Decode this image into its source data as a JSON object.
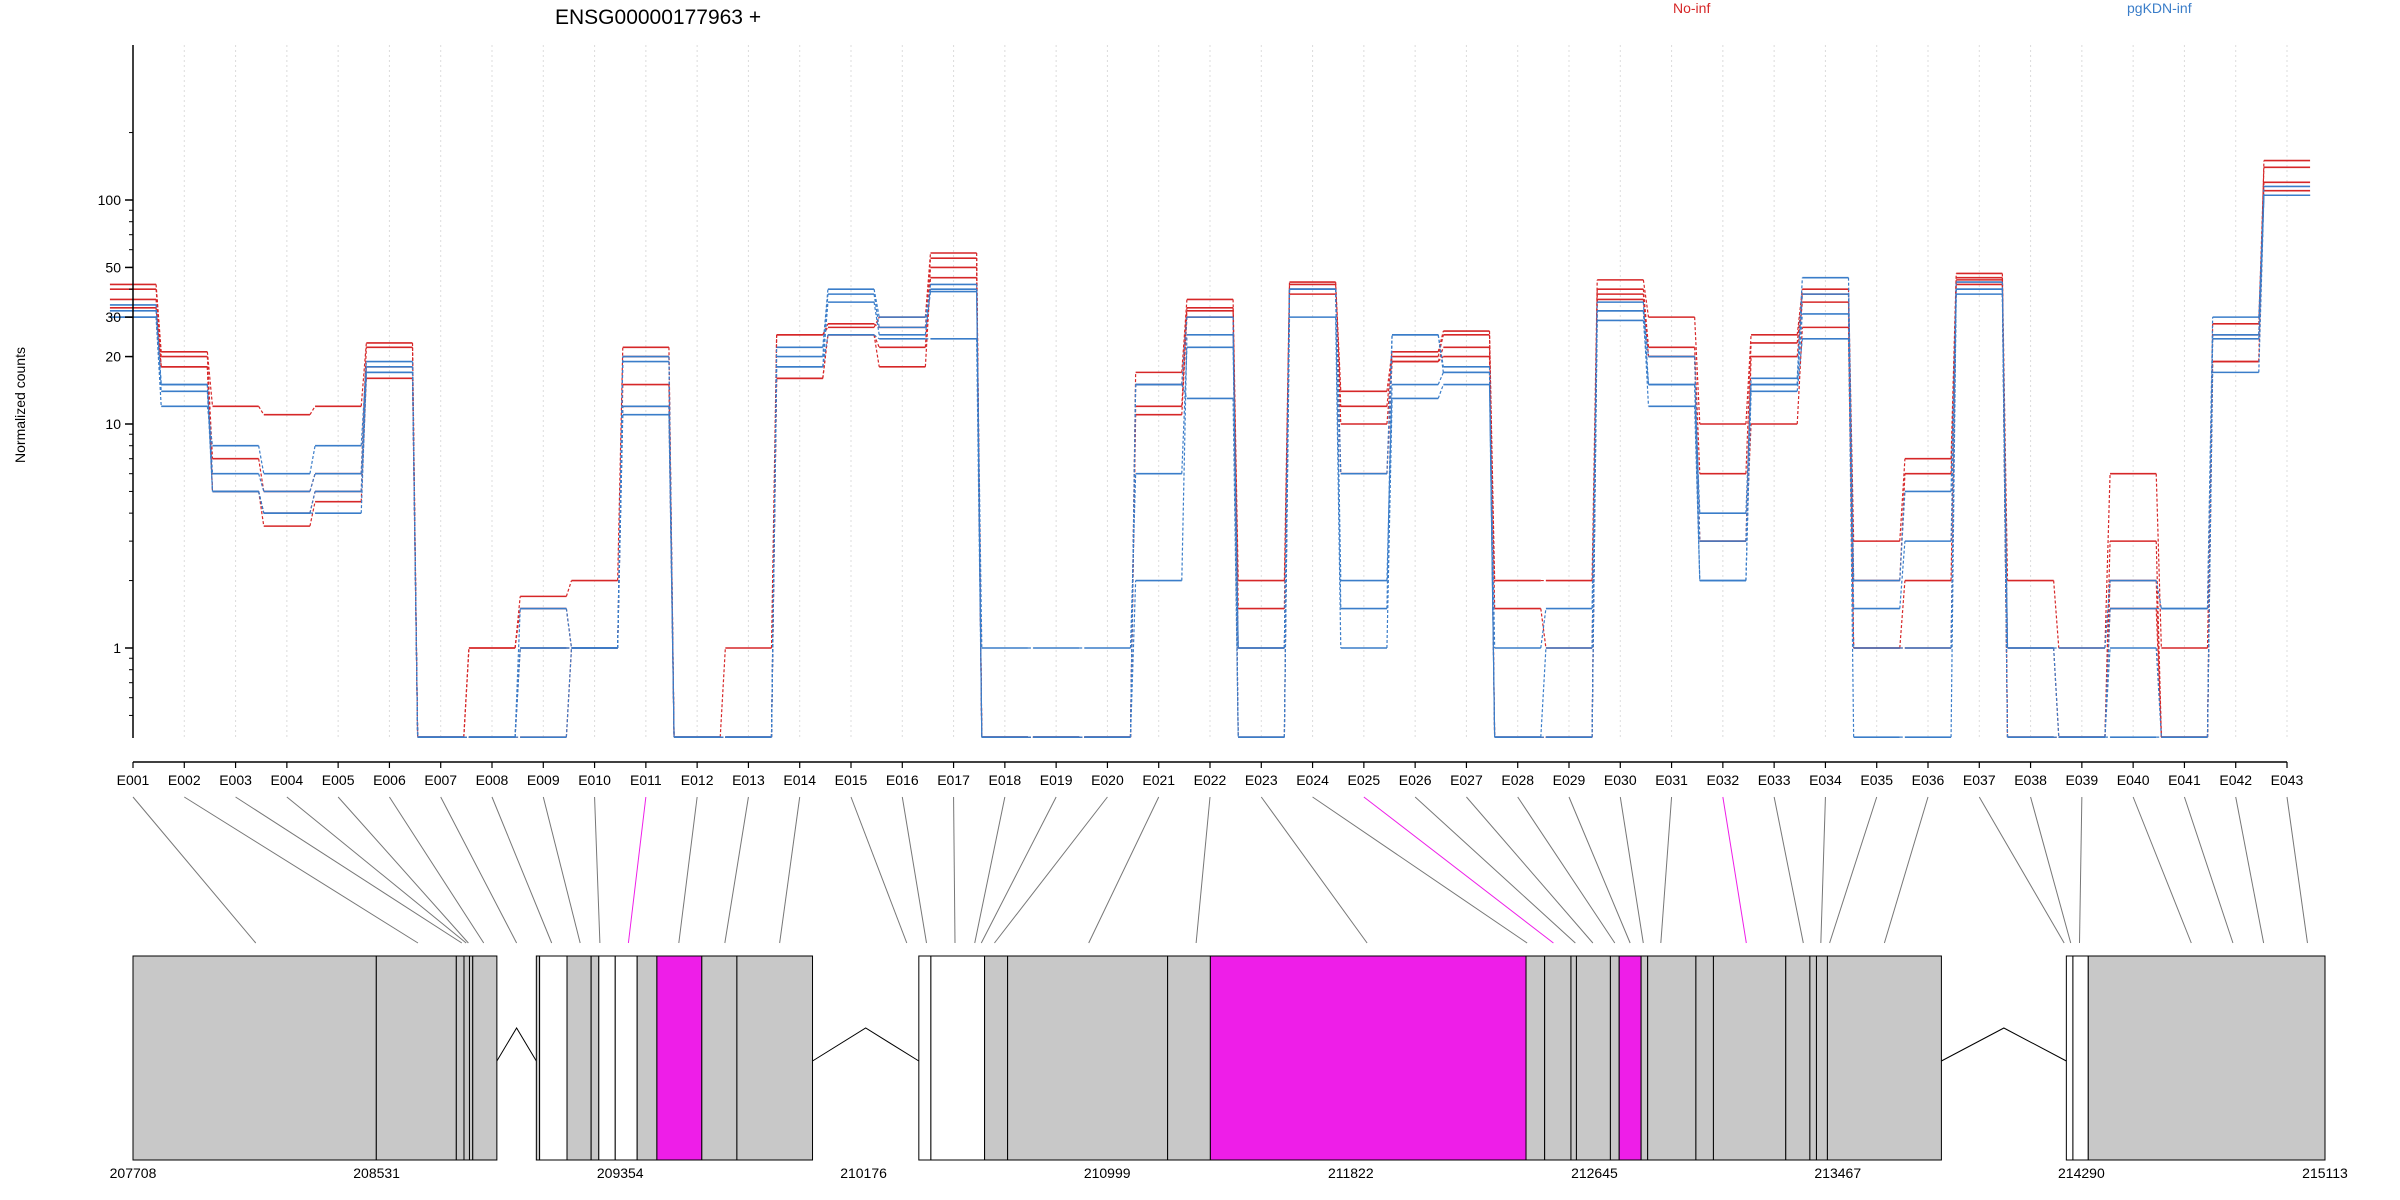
{
  "chart_data": {
    "type": "line",
    "title": "ENSG00000177963 +",
    "ylabel": "Normalized counts",
    "y_scale": "log",
    "ylim": [
      0.4,
      200
    ],
    "y_ticks": [
      1,
      10,
      20,
      30,
      50,
      100
    ],
    "grid": "vertical dotted",
    "legend": [
      {
        "name": "No-inf",
        "color": "#d62728"
      },
      {
        "name": "pgKDN-inf",
        "color": "#3a7dc9"
      }
    ],
    "categories": [
      "E001",
      "E002",
      "E003",
      "E004",
      "E005",
      "E006",
      "E007",
      "E008",
      "E009",
      "E010",
      "E011",
      "E012",
      "E013",
      "E014",
      "E015",
      "E016",
      "E017",
      "E018",
      "E019",
      "E020",
      "E021",
      "E022",
      "E023",
      "E024",
      "E025",
      "E026",
      "E027",
      "E028",
      "E029",
      "E030",
      "E031",
      "E032",
      "E033",
      "E034",
      "E035",
      "E036",
      "E037",
      "E038",
      "E039",
      "E040",
      "E041",
      "E042",
      "E043"
    ],
    "series": [
      {
        "group": "No-inf",
        "values": [
          42,
          21,
          12,
          11,
          12,
          23,
          0.4,
          1,
          1.7,
          2,
          22,
          0.4,
          1,
          25,
          27,
          30,
          58,
          0.4,
          0.4,
          0.4,
          17,
          36,
          2,
          43,
          14,
          21,
          26,
          2,
          2,
          44,
          30,
          10,
          25,
          40,
          3,
          7,
          47,
          2,
          1,
          6,
          1,
          19,
          150
        ]
      },
      {
        "group": "No-inf",
        "values": [
          40,
          20,
          7,
          5,
          6,
          22,
          0.4,
          1,
          1.5,
          1,
          20,
          0.4,
          0.4,
          25,
          28,
          27,
          55,
          0.4,
          0.4,
          0.4,
          15,
          33,
          1.5,
          42,
          12,
          20,
          25,
          1.5,
          1,
          40,
          22,
          6,
          23,
          38,
          2,
          6,
          45,
          1,
          0.4,
          3,
          0.4,
          28,
          140
        ]
      },
      {
        "group": "No-inf",
        "values": [
          36,
          18,
          5,
          4,
          5,
          18,
          0.4,
          0.4,
          1,
          1,
          15,
          0.4,
          0.4,
          16,
          25,
          22,
          50,
          0.4,
          0.4,
          0.4,
          12,
          32,
          1,
          40,
          10,
          19,
          22,
          0.4,
          0.4,
          38,
          20,
          3,
          20,
          35,
          1,
          2,
          44,
          0.4,
          0.4,
          2,
          0.4,
          25,
          120
        ]
      },
      {
        "group": "No-inf",
        "values": [
          33,
          18,
          5,
          3.5,
          4.5,
          16,
          0.4,
          0.4,
          0.4,
          1,
          12,
          0.4,
          0.4,
          16,
          25,
          18,
          45,
          0.4,
          0.4,
          0.4,
          11,
          30,
          0.4,
          38,
          6,
          19,
          20,
          0.4,
          0.4,
          36,
          20,
          3,
          10,
          27,
          1,
          1,
          42,
          0.4,
          0.4,
          1.5,
          0.4,
          19,
          110
        ]
      },
      {
        "group": "pgKDN-inf",
        "values": [
          30,
          12,
          8,
          6,
          8,
          19,
          0.4,
          0.4,
          1.5,
          1,
          19,
          0.4,
          0.4,
          22,
          40,
          30,
          40,
          1,
          1,
          1,
          6,
          22,
          1,
          40,
          6,
          25,
          18,
          1,
          1.5,
          35,
          15,
          4,
          16,
          45,
          2,
          5,
          43,
          1,
          1,
          2,
          1.5,
          30,
          115
        ]
      },
      {
        "group": "pgKDN-inf",
        "values": [
          32,
          15,
          6,
          5,
          6,
          18,
          0.4,
          0.4,
          1,
          1,
          20,
          0.4,
          0.4,
          20,
          38,
          27,
          42,
          0.4,
          0.4,
          0.4,
          2,
          25,
          1,
          40,
          2,
          15,
          17,
          0.4,
          1,
          32,
          20,
          3,
          15,
          38,
          1.5,
          3,
          40,
          1,
          0.4,
          1.5,
          1.5,
          25,
          105
        ]
      },
      {
        "group": "pgKDN-inf",
        "values": [
          34,
          15,
          5,
          4,
          5,
          17,
          0.4,
          0.4,
          1,
          1,
          12,
          0.4,
          0.4,
          18,
          35,
          25,
          39,
          0.4,
          0.4,
          0.4,
          15,
          30,
          0.4,
          40,
          1.5,
          25,
          17,
          0.4,
          0.4,
          32,
          12,
          2,
          14,
          24,
          1,
          1,
          38,
          0.4,
          0.4,
          1,
          0.4,
          24,
          105
        ]
      },
      {
        "group": "pgKDN-inf",
        "values": [
          30,
          14,
          5,
          4,
          4,
          17,
          0.4,
          0.4,
          0.4,
          1,
          11,
          0.4,
          0.4,
          18,
          25,
          24,
          24,
          0.4,
          0.4,
          0.4,
          15,
          13,
          0.4,
          30,
          1,
          13,
          15,
          0.4,
          0.4,
          29,
          15,
          2,
          15,
          31,
          0.4,
          0.4,
          40,
          0.4,
          0.4,
          0.4,
          0.4,
          17,
          105
        ]
      }
    ]
  },
  "gene_model": {
    "coordinate_labels": [
      "207708",
      "208531",
      "209354",
      "210176",
      "210999",
      "211822",
      "212645",
      "213467",
      "214290",
      "215113"
    ],
    "coord_min": 207708,
    "coord_max": 215113,
    "highlight_color": "#ee1ee8",
    "exon_fill": "#c8c8c8",
    "highlighted_exons": [
      "E011",
      "E025",
      "E032"
    ]
  }
}
